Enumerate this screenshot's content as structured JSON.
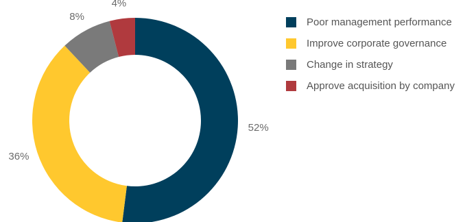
{
  "chart_data": {
    "type": "pie",
    "donut": true,
    "categories": [
      "Poor management performance",
      "Improve corporate governance",
      "Change in strategy",
      "Approve acquisition by company"
    ],
    "values": [
      52,
      36,
      8,
      4
    ],
    "value_labels": [
      "52%",
      "36%",
      "8%",
      "4%"
    ],
    "colors": [
      "#003f5c",
      "#ffc82e",
      "#7a7a7a",
      "#b03a3e"
    ],
    "legend": "right"
  }
}
